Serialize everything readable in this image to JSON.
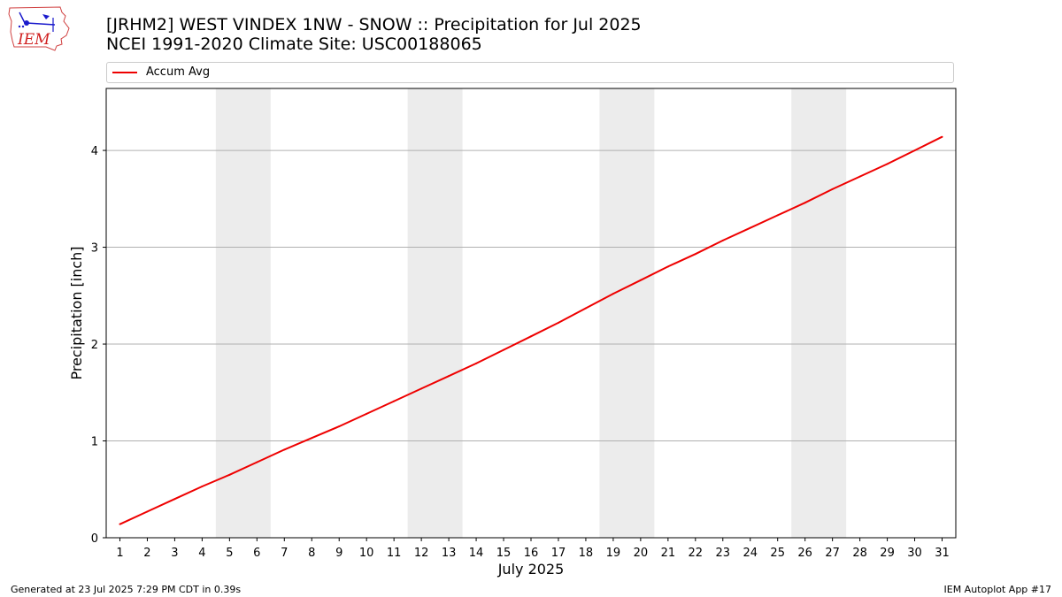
{
  "header": {
    "title_line1": "[JRHM2] WEST VINDEX 1NW - SNOW :: Precipitation for Jul 2025",
    "title_line2": "NCEI 1991-2020 Climate Site: USC00188065"
  },
  "logo": {
    "text": "IEM",
    "icon": "iem-logo-icon"
  },
  "footer": {
    "generated": "Generated at 23 Jul 2025 7:29 PM CDT in 0.39s",
    "app": "IEM Autoplot App #17"
  },
  "colors": {
    "line": "#ee0000",
    "weekend_band": "#ececec",
    "grid": "#b0b0b0"
  },
  "chart_data": {
    "type": "line",
    "xlabel": "July 2025",
    "ylabel": "Precipitation [inch]",
    "x": [
      1,
      2,
      3,
      4,
      5,
      6,
      7,
      8,
      9,
      10,
      11,
      12,
      13,
      14,
      15,
      16,
      17,
      18,
      19,
      20,
      21,
      22,
      23,
      24,
      25,
      26,
      27,
      28,
      29,
      30,
      31
    ],
    "xlim": [
      0.5,
      31.5
    ],
    "ylim": [
      0,
      4.64
    ],
    "yticks": [
      0,
      1,
      2,
      3,
      4
    ],
    "grid": "y",
    "legend": "top",
    "weekend_bands": [
      [
        5,
        6
      ],
      [
        12,
        13
      ],
      [
        19,
        20
      ],
      [
        26,
        27
      ]
    ],
    "series": [
      {
        "name": "Accum Avg",
        "values": [
          0.14,
          0.27,
          0.4,
          0.53,
          0.65,
          0.78,
          0.91,
          1.03,
          1.15,
          1.28,
          1.41,
          1.54,
          1.67,
          1.8,
          1.94,
          2.08,
          2.22,
          2.37,
          2.52,
          2.66,
          2.8,
          2.93,
          3.07,
          3.2,
          3.33,
          3.46,
          3.6,
          3.73,
          3.86,
          4.0,
          4.14
        ]
      }
    ]
  }
}
